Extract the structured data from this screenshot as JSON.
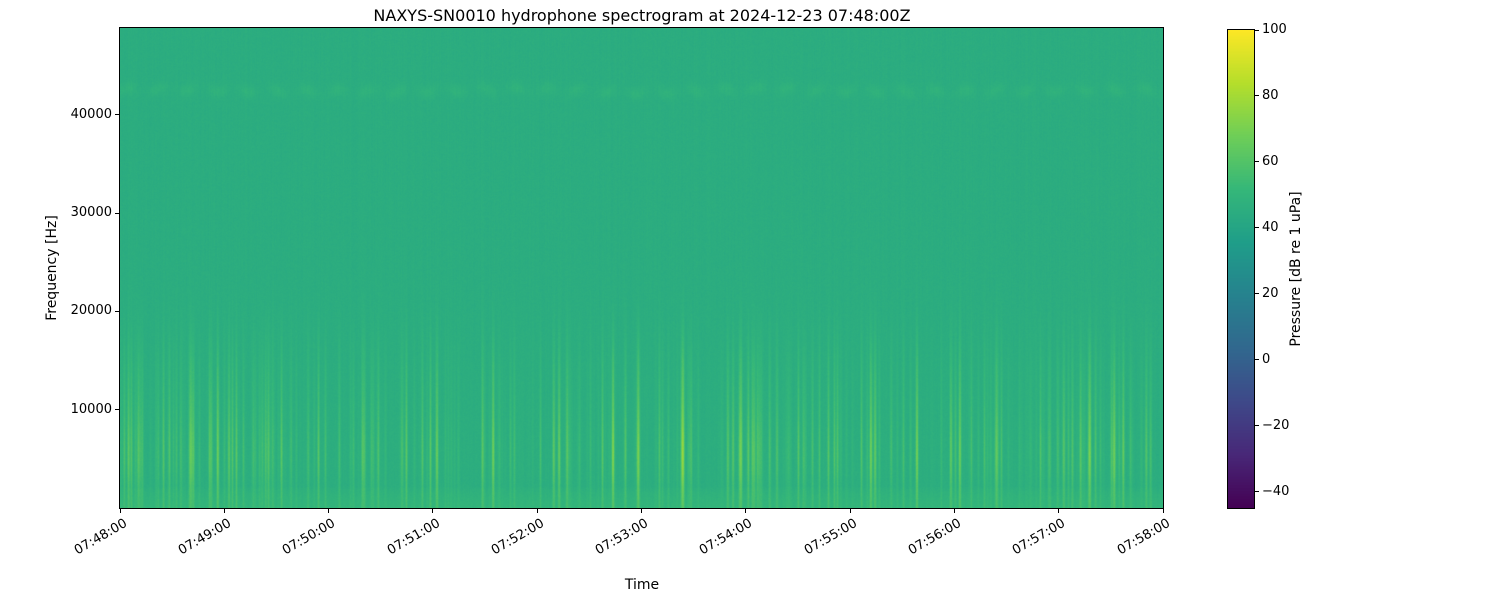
{
  "chart_data": {
    "type": "heatmap",
    "title": "NAXYS-SN0010 hydrophone spectrogram at 2024-12-23 07:48:00Z",
    "xlabel": "Time",
    "ylabel": "Frequency [Hz]",
    "x_ticks": [
      "07:48:00",
      "07:49:00",
      "07:50:00",
      "07:51:00",
      "07:52:00",
      "07:53:00",
      "07:54:00",
      "07:55:00",
      "07:56:00",
      "07:57:00",
      "07:58:00"
    ],
    "y_ticks": [
      10000,
      20000,
      30000,
      40000
    ],
    "ylim": [
      0,
      48828
    ],
    "duration_seconds": 600,
    "grid": false,
    "colorbar": {
      "label": "Pressure [dB re 1 uPa]",
      "ticks": [
        "100",
        "80",
        "60",
        "40",
        "20",
        "0",
        "−20",
        "−40"
      ],
      "tick_values": [
        100,
        80,
        60,
        40,
        20,
        0,
        -20,
        -40
      ],
      "clim": [
        -45,
        100
      ],
      "colormap": "viridis",
      "position": "right"
    },
    "spectrogram_model": {
      "seed": 424242,
      "background_db": 45,
      "noise_db": 1.2,
      "column_tint_db": 0.6,
      "broadband_band": {
        "center_hz": 5000,
        "sigma_hz": 3500,
        "max_boost_db": 14
      },
      "mid_band": {
        "center_hz": 12500,
        "sigma_hz": 4000,
        "max_boost_db": 7
      },
      "full_height_tail": {
        "max_hz": 30000,
        "boost_db": 3
      },
      "bottom_band": {
        "max_hz": 2200,
        "boost_db": 5
      },
      "tonal_line": {
        "center_hz": 42500,
        "sigma_hz": 450,
        "boost_db": 3.5
      },
      "transient_density": 0.35,
      "transient_max_amplitude": 2.2
    },
    "viridis_stops": [
      "#440154",
      "#482878",
      "#3e4989",
      "#31688e",
      "#26828e",
      "#1f9e89",
      "#35b779",
      "#6ece58",
      "#b5de2b",
      "#fde725"
    ]
  }
}
